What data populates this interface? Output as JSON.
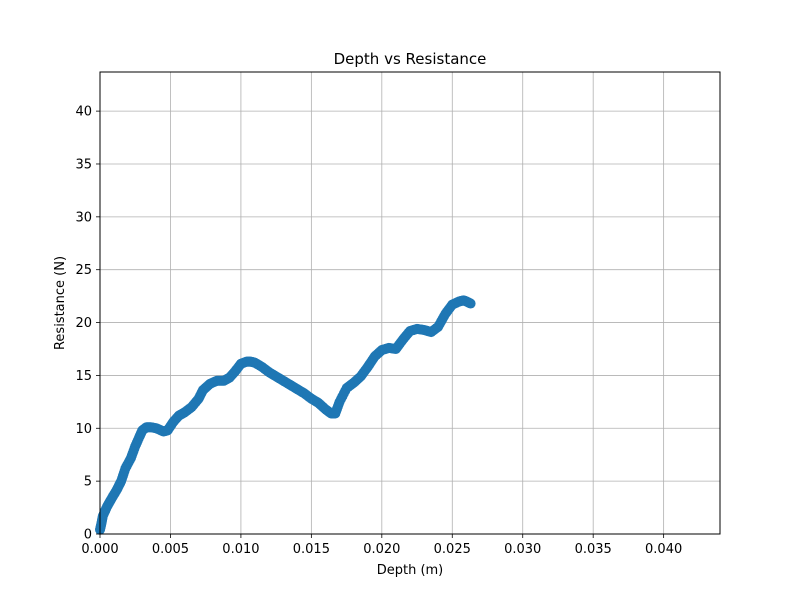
{
  "chart_data": {
    "type": "scatter",
    "title": "Depth vs Resistance",
    "xlabel": "Depth (m)",
    "ylabel": "Resistance (N)",
    "xlim": [
      0,
      0.044
    ],
    "ylim": [
      0,
      43.7
    ],
    "xticks": [
      0.0,
      0.005,
      0.01,
      0.015,
      0.02,
      0.025,
      0.03,
      0.035,
      0.04
    ],
    "xtick_labels": [
      "0.000",
      "0.005",
      "0.010",
      "0.015",
      "0.020",
      "0.025",
      "0.030",
      "0.035",
      "0.040"
    ],
    "yticks": [
      0,
      5,
      10,
      15,
      20,
      25,
      30,
      35,
      40
    ],
    "ytick_labels": [
      "0",
      "5",
      "10",
      "15",
      "20",
      "25",
      "30",
      "35",
      "40"
    ],
    "grid": true,
    "marker_color": "#1f77b4",
    "series": [
      {
        "x": [
          0.0,
          0.0001,
          0.0002,
          0.0005,
          0.0008,
          0.0012,
          0.0015,
          0.0018,
          0.0022,
          0.0025,
          0.0028,
          0.003,
          0.0033,
          0.0036,
          0.004,
          0.0045,
          0.0048,
          0.0052,
          0.0056,
          0.006,
          0.0065,
          0.007,
          0.0073,
          0.0078,
          0.0083,
          0.0088,
          0.0092,
          0.0096,
          0.01,
          0.0104,
          0.0107,
          0.011,
          0.0115,
          0.012,
          0.0125,
          0.013,
          0.0135,
          0.014,
          0.0145,
          0.015,
          0.0155,
          0.016,
          0.0164,
          0.0167,
          0.017,
          0.0175,
          0.018,
          0.0185,
          0.019,
          0.0195,
          0.02,
          0.0205,
          0.021,
          0.0215,
          0.022,
          0.0225,
          0.023,
          0.0235,
          0.024,
          0.0245,
          0.025,
          0.0255,
          0.0258,
          0.026,
          0.0263
        ],
        "y": [
          0.4,
          1.0,
          1.7,
          2.6,
          3.3,
          4.2,
          5.0,
          6.2,
          7.2,
          8.3,
          9.2,
          9.8,
          10.1,
          10.1,
          10.0,
          9.7,
          9.8,
          10.6,
          11.2,
          11.5,
          12.0,
          12.8,
          13.6,
          14.2,
          14.5,
          14.5,
          14.8,
          15.4,
          16.1,
          16.3,
          16.3,
          16.2,
          15.8,
          15.3,
          14.9,
          14.5,
          14.1,
          13.7,
          13.3,
          12.8,
          12.4,
          11.8,
          11.4,
          11.4,
          12.5,
          13.8,
          14.3,
          14.9,
          15.8,
          16.8,
          17.4,
          17.6,
          17.5,
          18.4,
          19.2,
          19.4,
          19.3,
          19.1,
          19.6,
          20.8,
          21.7,
          22.0,
          22.1,
          22.0,
          21.8
        ]
      }
    ]
  }
}
